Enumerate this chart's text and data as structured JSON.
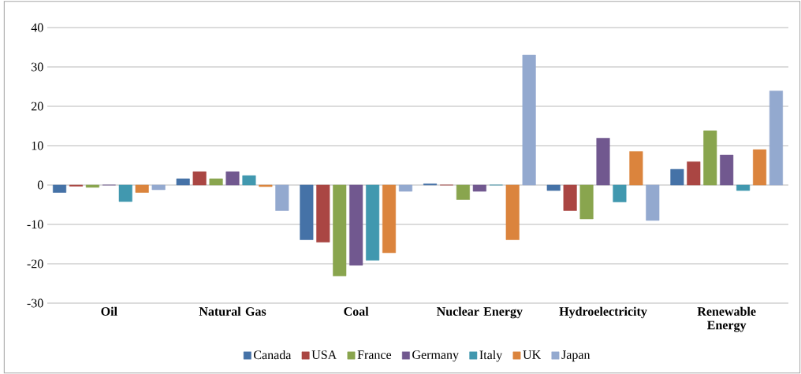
{
  "chart_data": {
    "type": "bar",
    "categories": [
      "Oil",
      "Natural Gas",
      "Coal",
      "Nuclear Energy",
      "Hydroelectricity",
      "Renewable Energy"
    ],
    "series": [
      {
        "name": "Canada",
        "color": "#4572a7",
        "values": [
          -1.9,
          1.6,
          -13.9,
          0.3,
          -1.4,
          4.0
        ]
      },
      {
        "name": "USA",
        "color": "#aa4643",
        "values": [
          -0.3,
          3.4,
          -14.5,
          0,
          -6.5,
          5.9
        ]
      },
      {
        "name": "France",
        "color": "#89a54e",
        "values": [
          -0.6,
          1.6,
          -23.1,
          -3.7,
          -8.6,
          13.8
        ]
      },
      {
        "name": "Germany",
        "color": "#71588f",
        "values": [
          0,
          3.4,
          -20.4,
          -1.6,
          11.9,
          7.6
        ]
      },
      {
        "name": "Italy",
        "color": "#4198af",
        "values": [
          -4.2,
          2.4,
          -19.1,
          0,
          -4.3,
          -1.4
        ]
      },
      {
        "name": "UK",
        "color": "#db843d",
        "values": [
          -1.9,
          -0.4,
          -17.2,
          -13.9,
          8.5,
          9.0
        ]
      },
      {
        "name": "Japan",
        "color": "#93a9cf",
        "values": [
          -1.2,
          -6.5,
          -1.6,
          33.0,
          -9.0,
          23.9
        ]
      }
    ],
    "ylim": [
      -30,
      40
    ],
    "yticks": [
      -30,
      -20,
      -10,
      0,
      10,
      20,
      30,
      40
    ],
    "grid": "y",
    "legend": "bottom"
  }
}
